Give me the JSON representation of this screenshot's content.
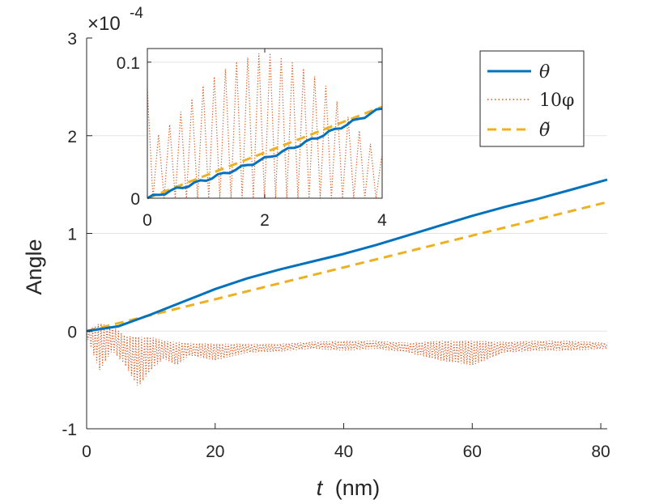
{
  "chart_data": [
    {
      "type": "line",
      "role": "main",
      "title": "",
      "xlabel_var": "t",
      "xlabel_unit": "(nm)",
      "ylabel": "Angle",
      "scale_base": "×10",
      "scale_exponent": "-4",
      "xlim": [
        0,
        81
      ],
      "ylim": [
        -1,
        3
      ],
      "xticks": [
        0,
        20,
        40,
        60,
        80
      ],
      "yticks": [
        -1,
        0,
        1,
        2,
        3
      ],
      "xtick_labels": [
        "0",
        "20",
        "40",
        "60",
        "80"
      ],
      "ytick_labels": [
        "-1",
        "0",
        "1",
        "2",
        "3"
      ],
      "grid": "horizontal",
      "series": [
        {
          "name": "θ",
          "style": "solid",
          "color": "#0072BD",
          "x": [
            0,
            5,
            10,
            15,
            20,
            25,
            30,
            35,
            40,
            45,
            50,
            55,
            60,
            65,
            70,
            75,
            81
          ],
          "y": [
            0,
            0.05,
            0.17,
            0.3,
            0.43,
            0.54,
            0.63,
            0.71,
            0.79,
            0.88,
            0.98,
            1.08,
            1.18,
            1.27,
            1.35,
            1.44,
            1.55
          ]
        },
        {
          "name": "10φ",
          "style": "dotted",
          "color": "#D95319",
          "x": [
            0,
            2,
            4,
            6,
            8,
            10,
            12,
            14,
            16,
            20,
            25,
            30,
            35,
            40,
            45,
            50,
            55,
            60,
            65,
            70,
            75,
            81
          ],
          "upper": [
            0,
            0.08,
            0.05,
            -0.05,
            -0.06,
            -0.06,
            -0.1,
            -0.11,
            -0.12,
            -0.13,
            -0.13,
            -0.13,
            -0.11,
            -0.1,
            -0.1,
            -0.12,
            -0.1,
            -0.1,
            -0.11,
            -0.1,
            -0.1,
            -0.12
          ],
          "lower": [
            -0.05,
            -0.4,
            -0.2,
            -0.35,
            -0.57,
            -0.4,
            -0.28,
            -0.35,
            -0.25,
            -0.3,
            -0.22,
            -0.21,
            -0.18,
            -0.2,
            -0.18,
            -0.22,
            -0.3,
            -0.35,
            -0.22,
            -0.2,
            -0.2,
            -0.18
          ],
          "period": 0.45
        },
        {
          "name": "θ̃",
          "style": "dashed",
          "color": "#EDB120",
          "x": [
            0,
            81
          ],
          "y": [
            0,
            1.32
          ]
        }
      ]
    },
    {
      "type": "line",
      "role": "inset",
      "xlim": [
        0,
        4
      ],
      "ylim": [
        0,
        0.11
      ],
      "xticks": [
        0,
        2,
        4
      ],
      "yticks": [
        0,
        0.1
      ],
      "xtick_labels": [
        "0",
        "2",
        "4"
      ],
      "ytick_labels": [
        "0",
        "0.1"
      ],
      "grid": "horizontal",
      "series": [
        {
          "name": "θ",
          "style": "solid",
          "color": "#0072BD",
          "x": [
            0,
            4
          ],
          "y": [
            0,
            0.066
          ]
        },
        {
          "name": "10φ",
          "style": "dotted",
          "color": "#D95319",
          "period": 0.19,
          "envelope_x": [
            0,
            0.2,
            0.5,
            1.0,
            1.5,
            2.0,
            2.5,
            3.0,
            3.5,
            4.0
          ],
          "envelope_max": [
            0.08,
            0.045,
            0.06,
            0.085,
            0.1,
            0.108,
            0.1,
            0.085,
            0.055,
            0.03
          ]
        },
        {
          "name": "θ̃",
          "style": "dashed",
          "color": "#EDB120",
          "x": [
            0,
            4
          ],
          "y": [
            0,
            0.066
          ]
        }
      ]
    }
  ],
  "legend": {
    "position": "top-right",
    "entries": [
      {
        "label": "θ",
        "style": "solid",
        "color": "#0072BD"
      },
      {
        "label": "10φ",
        "style": "dotted",
        "color": "#D95319"
      },
      {
        "label": "θ̃",
        "style": "dashed",
        "color": "#EDB120"
      }
    ]
  }
}
